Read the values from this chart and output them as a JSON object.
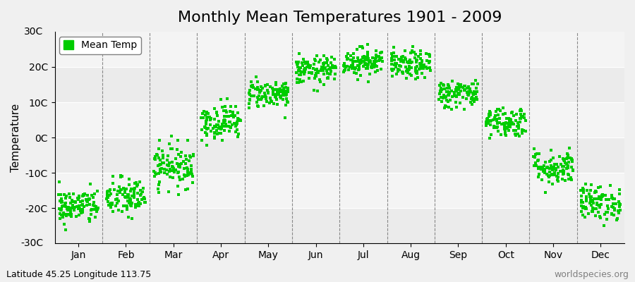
{
  "title": "Monthly Mean Temperatures 1901 - 2009",
  "ylabel": "Temperature",
  "ylim": [
    -30,
    30
  ],
  "yticks": [
    -20,
    -10,
    0,
    10,
    20
  ],
  "ytick_labels": [
    "-20C",
    "-10C",
    "0C",
    "10C",
    "20C"
  ],
  "months": [
    "Jan",
    "Feb",
    "Mar",
    "Apr",
    "May",
    "Jun",
    "Jul",
    "Aug",
    "Sep",
    "Oct",
    "Nov",
    "Dec"
  ],
  "month_means": [
    -19.5,
    -17.0,
    -8.0,
    4.5,
    12.5,
    19.0,
    21.5,
    20.5,
    12.5,
    4.5,
    -8.5,
    -18.5
  ],
  "month_stds": [
    2.5,
    2.8,
    3.0,
    2.5,
    2.0,
    2.0,
    2.0,
    2.0,
    2.0,
    2.2,
    2.5,
    2.5
  ],
  "n_years": 109,
  "dot_color": "#00cc00",
  "dot_size": 8,
  "background_color": "#f0f0f0",
  "plot_bg_color": "#f0f0f0",
  "grid_color": "#ffffff",
  "dashed_line_color": "#888888",
  "legend_label": "Mean Temp",
  "bottom_left_text": "Latitude 45.25 Longitude 113.75",
  "bottom_right_text": "worldspecies.org",
  "title_fontsize": 16,
  "axis_label_fontsize": 11,
  "tick_fontsize": 10,
  "annotation_fontsize": 9
}
